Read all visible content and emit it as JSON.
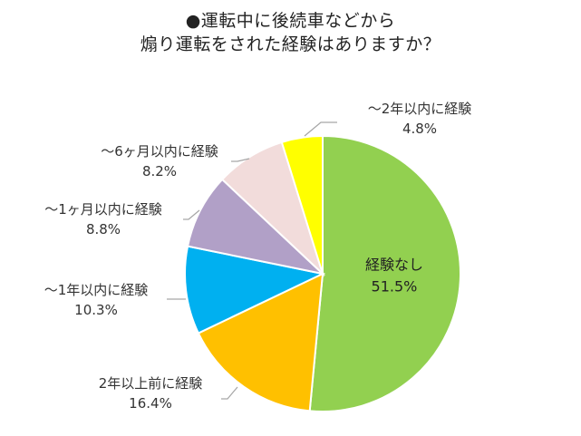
{
  "chart_data": {
    "type": "pie",
    "title_lines": [
      "●運転中に後続車などから",
      "煽り運転をされた経験はありますか？"
    ],
    "start_angle_deg": 0,
    "direction": "clockwise",
    "slices": [
      {
        "label": "経験なし",
        "value": 51.5,
        "value_text": "51.5%",
        "color": "#92d050",
        "label_position": "inside"
      },
      {
        "label": "2年以上前に経験",
        "value": 16.4,
        "value_text": "16.4%",
        "color": "#ffc000",
        "label_position": "outside"
      },
      {
        "label": "～1年以内に経験",
        "value": 10.3,
        "value_text": "10.3%",
        "color": "#00b0f0",
        "label_position": "outside"
      },
      {
        "label": "～1ヶ月以内に経験",
        "value": 8.8,
        "value_text": "8.8%",
        "color": "#b1a0c7",
        "label_position": "outside"
      },
      {
        "label": "～6ヶ月以内に経験",
        "value": 8.2,
        "value_text": "8.2%",
        "color": "#f2dcdb",
        "label_position": "outside"
      },
      {
        "label": "～2年以内に経験",
        "value": 4.8,
        "value_text": "4.8%",
        "color": "#ffff00",
        "label_position": "outside"
      }
    ],
    "legend": "none",
    "leader_line_color": "#a6a6a6",
    "slice_border_color": "#ffffff"
  }
}
